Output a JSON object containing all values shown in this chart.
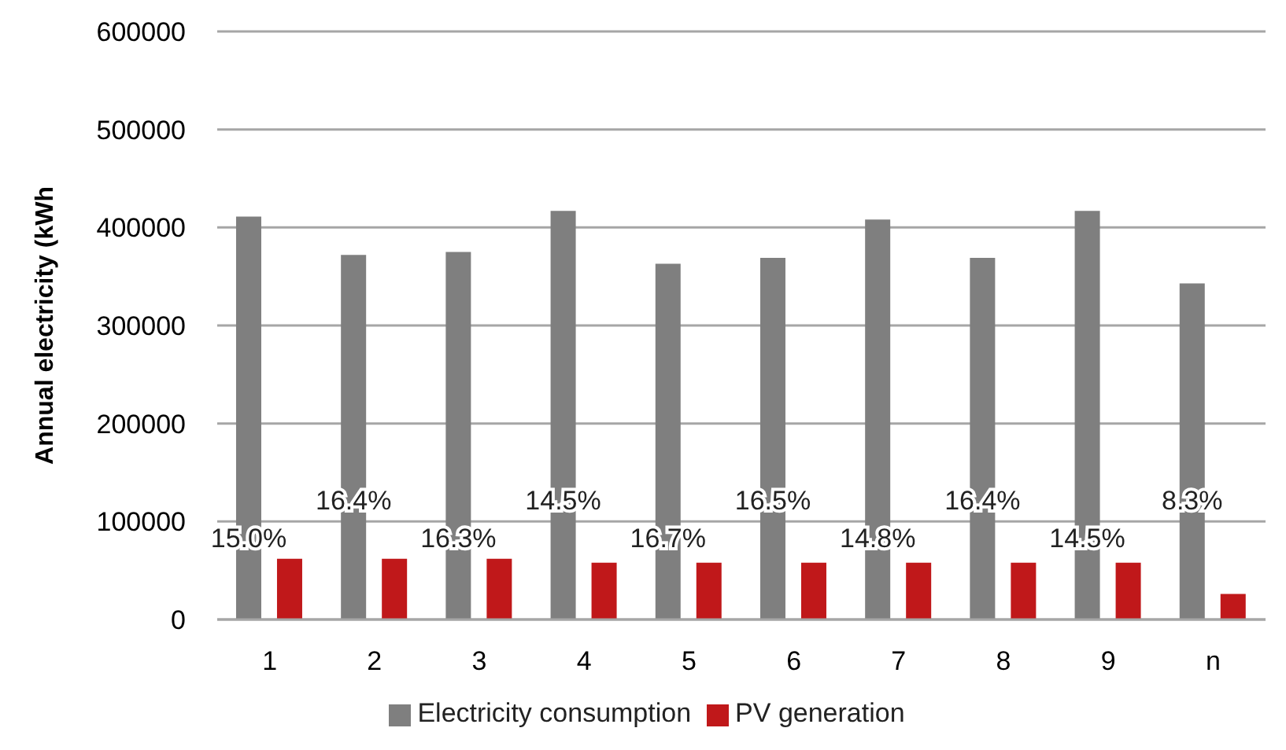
{
  "chart_data": {
    "type": "bar",
    "ylabel": "Annual electricity (kWh",
    "categories": [
      "1",
      "2",
      "3",
      "4",
      "5",
      "6",
      "7",
      "8",
      "9",
      "n"
    ],
    "series": [
      {
        "name": "Electricity consumption",
        "color": "#7f7f7f",
        "values": [
          411000,
          372000,
          375000,
          417000,
          363000,
          369000,
          408000,
          369000,
          417000,
          343000
        ]
      },
      {
        "name": "PV generation",
        "color": "#c0181a",
        "values": [
          62000,
          62000,
          62000,
          58000,
          58000,
          58000,
          58000,
          58000,
          58000,
          26000
        ]
      }
    ],
    "ylim": [
      0,
      600000
    ],
    "yticks": [
      0,
      100000,
      200000,
      300000,
      400000,
      500000,
      600000
    ],
    "grid": "y",
    "legend": "bottom",
    "annotations": [
      "15.0%",
      "16.4%",
      "16.3%",
      "14.5%",
      "16.7%",
      "16.5%",
      "14.8%",
      "16.4%",
      "14.5%",
      "8.3%"
    ]
  }
}
